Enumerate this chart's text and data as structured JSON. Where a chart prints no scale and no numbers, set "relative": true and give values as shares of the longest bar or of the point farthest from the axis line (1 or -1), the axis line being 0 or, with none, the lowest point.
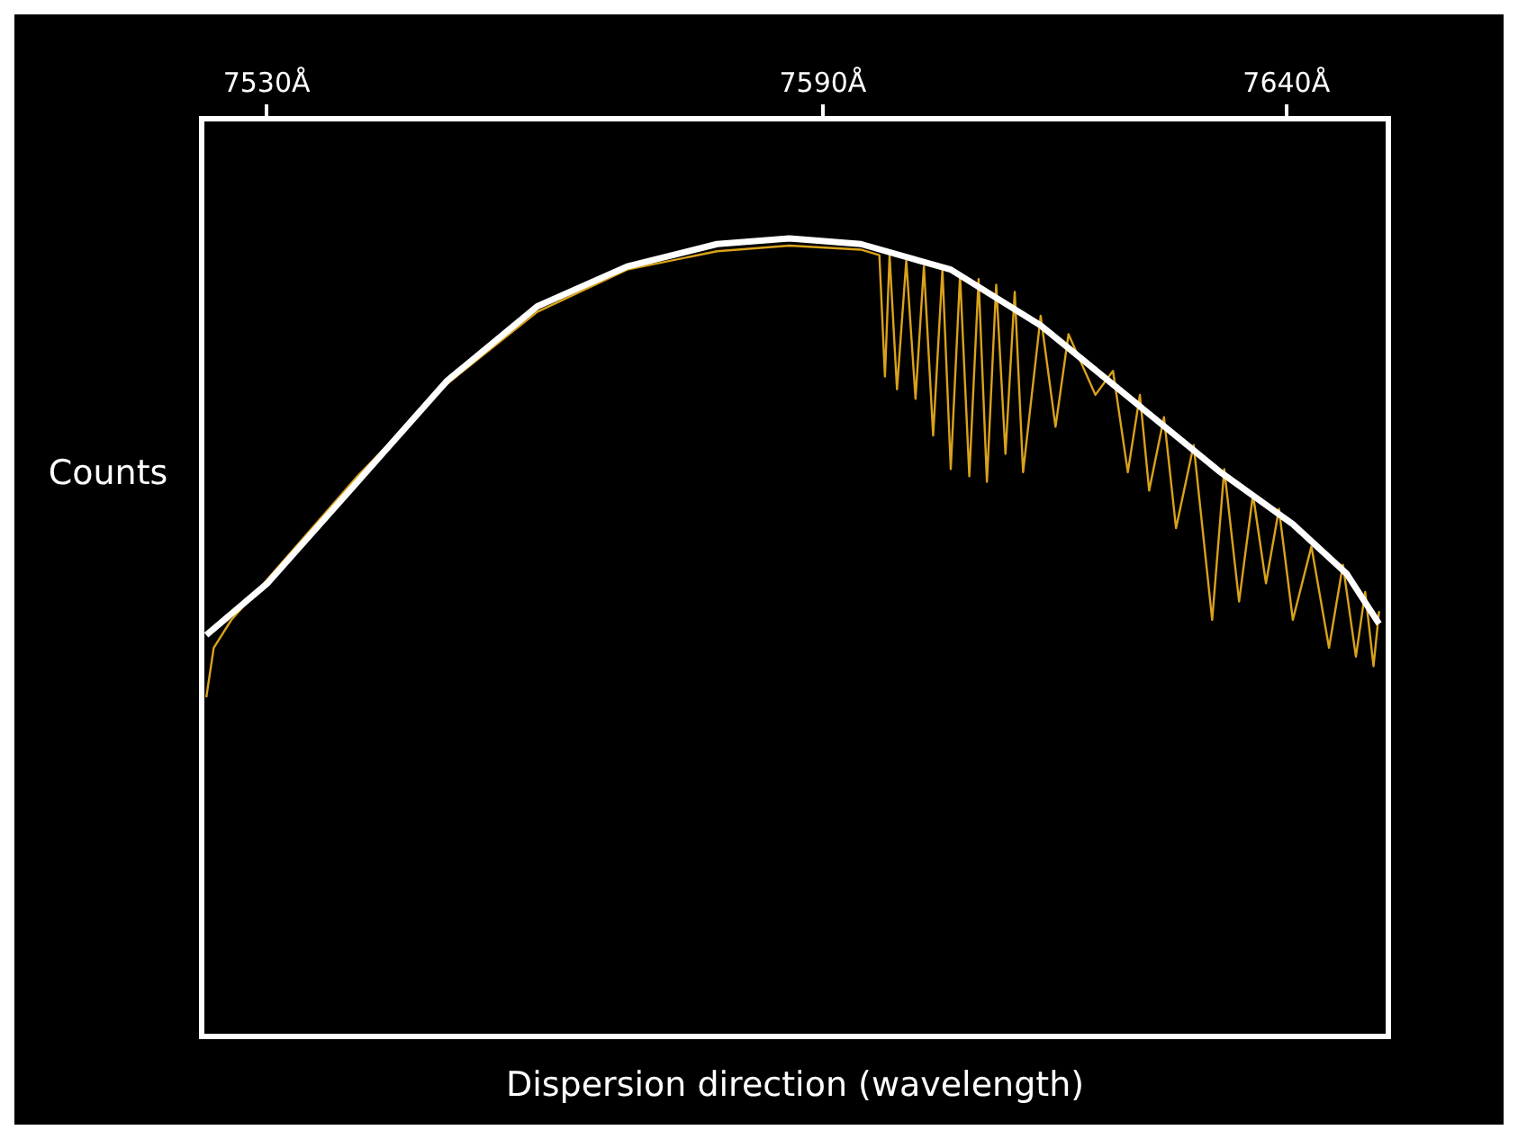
{
  "chart_data": {
    "type": "line",
    "relative": true,
    "xlabel": "Dispersion direction (wavelength)",
    "ylabel": "Counts",
    "xlim": [
      7523,
      7651
    ],
    "xticks": [
      {
        "value": 7530,
        "label": "7530Å"
      },
      {
        "value": 7590,
        "label": "7590Å"
      },
      {
        "value": 7640,
        "label": "7640Å"
      }
    ],
    "grid": false,
    "legend": false,
    "marker": "none",
    "line_style": "solid",
    "series": [
      {
        "color": "#d9a21b",
        "x": [
          7523.5,
          7524.3,
          7526.2,
          7530.1,
          7539.8,
          7549.5,
          7559.2,
          7568.9,
          7578.6,
          7586.4,
          7594.1,
          7596.1,
          7596.7,
          7597.2,
          7598.0,
          7599.0,
          7600.0,
          7600.9,
          7601.9,
          7602.9,
          7603.8,
          7604.8,
          7605.8,
          7606.8,
          7607.7,
          7608.7,
          7609.7,
          7610.7,
          7611.6,
          7613.5,
          7615.1,
          7616.5,
          7619.4,
          7621.3,
          7622.9,
          7624.2,
          7625.2,
          7626.8,
          7628.1,
          7630.0,
          7632.0,
          7633.3,
          7634.9,
          7636.4,
          7637.8,
          7639.2,
          7640.7,
          7642.7,
          7644.6,
          7646.1,
          7647.5,
          7648.5,
          7649.4,
          7650.0
        ],
        "values": [
          0.425,
          0.487,
          0.522,
          0.573,
          0.702,
          0.818,
          0.908,
          0.961,
          0.984,
          0.991,
          0.986,
          0.979,
          0.827,
          0.979,
          0.811,
          0.972,
          0.799,
          0.965,
          0.753,
          0.961,
          0.711,
          0.954,
          0.702,
          0.949,
          0.695,
          0.942,
          0.73,
          0.933,
          0.707,
          0.903,
          0.764,
          0.88,
          0.804,
          0.834,
          0.707,
          0.804,
          0.684,
          0.776,
          0.637,
          0.741,
          0.522,
          0.711,
          0.545,
          0.679,
          0.568,
          0.661,
          0.522,
          0.614,
          0.487,
          0.591,
          0.476,
          0.557,
          0.464,
          0.533
        ]
      },
      {
        "color": "#ffffff",
        "x": [
          7523.5,
          7530.1,
          7539.8,
          7549.5,
          7559.2,
          7568.9,
          7578.6,
          7586.4,
          7594.1,
          7603.8,
          7613.5,
          7623.2,
          7632.9,
          7640.7,
          7646.5,
          7650.0
        ],
        "values": [
          0.503,
          0.568,
          0.695,
          0.822,
          0.915,
          0.965,
          0.993,
          1.0,
          0.993,
          0.961,
          0.891,
          0.799,
          0.707,
          0.642,
          0.58,
          0.517
        ]
      }
    ]
  }
}
